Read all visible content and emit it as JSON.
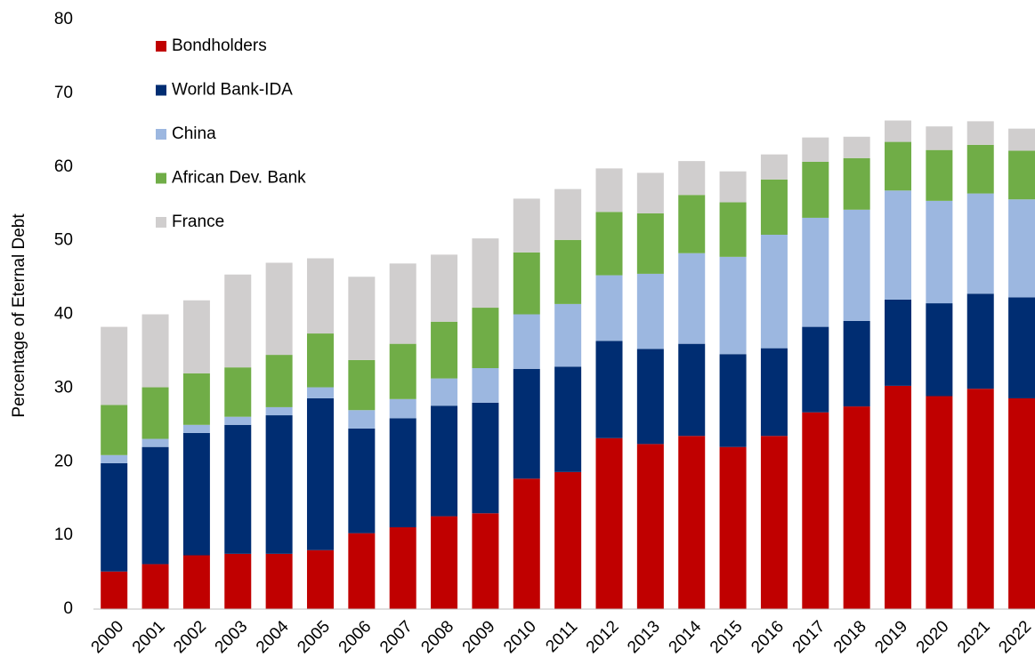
{
  "chart_data": {
    "type": "stacked_bar",
    "y_label": "Percentage of Eternal Debt",
    "categories": [
      "2000",
      "2001",
      "2002",
      "2003",
      "2004",
      "2005",
      "2006",
      "2007",
      "2008",
      "2009",
      "2010",
      "2011",
      "2012",
      "2013",
      "2014",
      "2015",
      "2016",
      "2017",
      "2018",
      "2019",
      "2020",
      "2021",
      "2022"
    ],
    "series": [
      {
        "name": "Bondholders",
        "color": "#c00000",
        "values": [
          5.1,
          6.1,
          7.3,
          7.5,
          7.5,
          8.0,
          10.3,
          11.1,
          12.6,
          13.0,
          17.7,
          18.6,
          23.2,
          22.4,
          23.5,
          22.0,
          23.5,
          26.7,
          27.5,
          30.3,
          28.9,
          29.9,
          28.6
        ]
      },
      {
        "name": "World Bank-IDA",
        "color": "#002d72",
        "values": [
          14.7,
          15.9,
          16.6,
          17.5,
          18.8,
          20.6,
          14.2,
          14.8,
          15.0,
          15.0,
          14.9,
          14.3,
          13.2,
          12.9,
          12.5,
          12.6,
          11.9,
          11.6,
          11.6,
          11.7,
          12.6,
          12.9,
          13.7
        ]
      },
      {
        "name": "China",
        "color": "#9cb7e0",
        "values": [
          1.1,
          1.1,
          1.1,
          1.1,
          1.1,
          1.5,
          2.5,
          2.6,
          3.7,
          4.7,
          7.4,
          8.5,
          8.9,
          10.2,
          12.3,
          13.2,
          15.4,
          14.8,
          15.1,
          14.8,
          13.9,
          13.6,
          13.3
        ]
      },
      {
        "name": "African Dev. Bank",
        "color": "#70ad47",
        "values": [
          6.8,
          7.0,
          7.0,
          6.7,
          7.1,
          7.3,
          6.8,
          7.5,
          7.7,
          8.2,
          8.4,
          8.7,
          8.6,
          8.2,
          7.9,
          7.4,
          7.5,
          7.6,
          7.0,
          6.6,
          6.9,
          6.6,
          6.6
        ]
      },
      {
        "name": "France",
        "color": "#d0cece",
        "values": [
          10.6,
          9.9,
          9.9,
          12.6,
          12.5,
          10.2,
          11.3,
          10.9,
          9.1,
          9.4,
          7.3,
          6.9,
          5.9,
          5.5,
          4.6,
          4.2,
          3.4,
          3.3,
          2.9,
          2.9,
          3.2,
          3.2,
          3.0
        ]
      }
    ],
    "ylim": [
      0,
      80
    ],
    "yticks": [
      0,
      10,
      20,
      30,
      40,
      50,
      60,
      70,
      80
    ],
    "grid": false,
    "legend": "upper left"
  }
}
